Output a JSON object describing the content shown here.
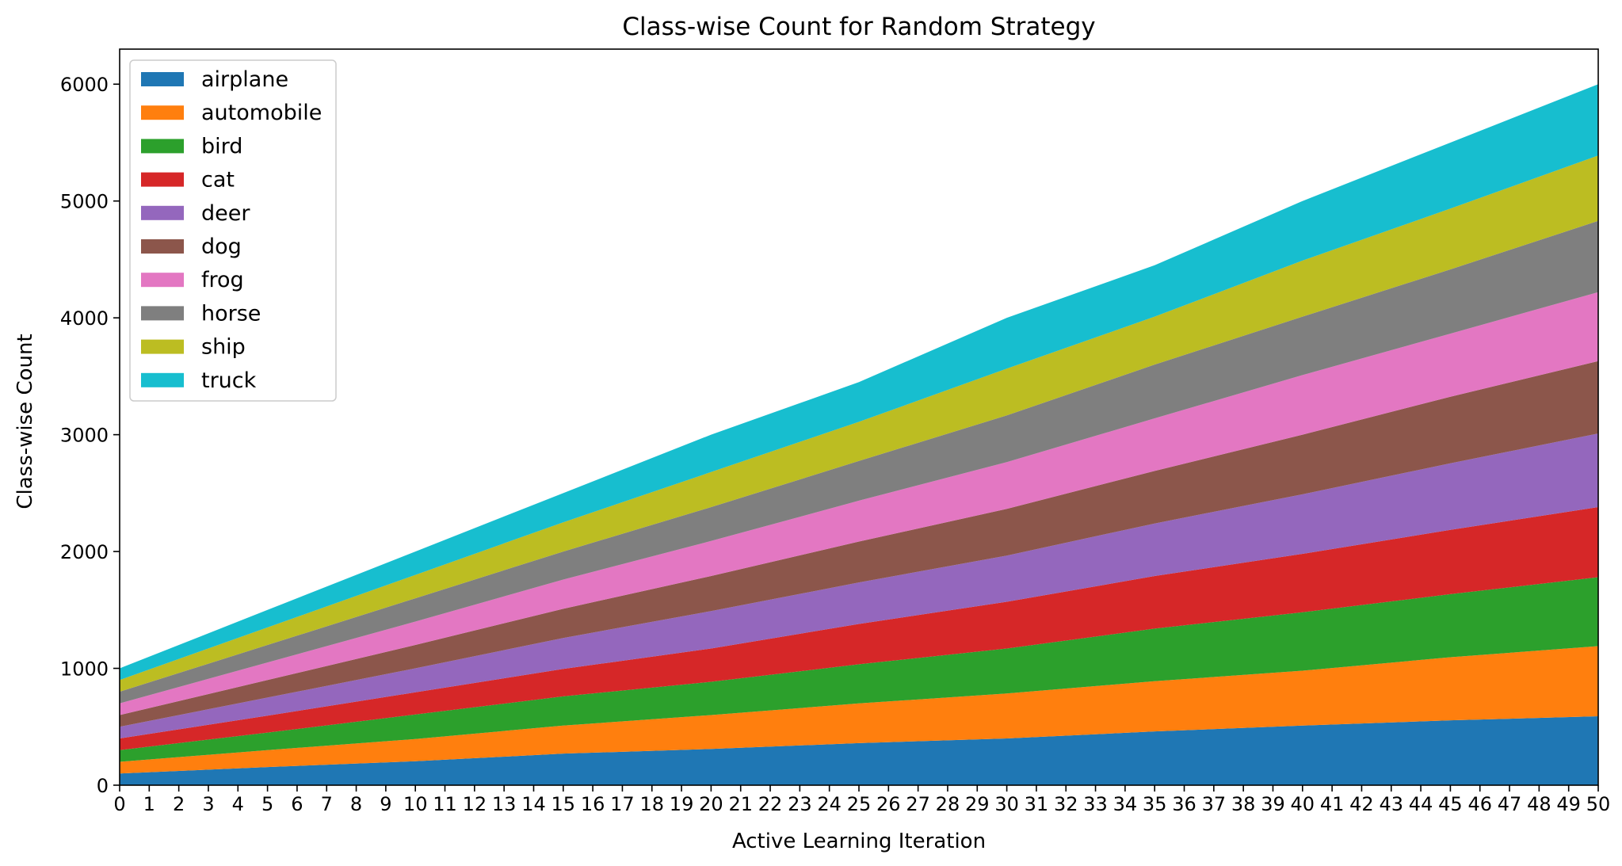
{
  "chart_data": {
    "type": "area",
    "stacked": true,
    "title": "Class-wise Count for Random Strategy",
    "xlabel": "Active Learning Iteration",
    "ylabel": "Class-wise Count",
    "xlim": [
      0,
      50
    ],
    "ylim": [
      0,
      6300
    ],
    "x_ticks": [
      0,
      1,
      2,
      3,
      4,
      5,
      6,
      7,
      8,
      9,
      10,
      11,
      12,
      13,
      14,
      15,
      16,
      17,
      18,
      19,
      20,
      21,
      22,
      23,
      24,
      25,
      26,
      27,
      28,
      29,
      30,
      31,
      32,
      33,
      34,
      35,
      36,
      37,
      38,
      39,
      40,
      41,
      42,
      43,
      44,
      45,
      46,
      47,
      48,
      49,
      50
    ],
    "y_ticks": [
      0,
      1000,
      2000,
      3000,
      4000,
      5000,
      6000
    ],
    "grid": false,
    "legend_position": "top-left",
    "x": [
      0,
      5,
      10,
      15,
      20,
      25,
      30,
      35,
      40,
      45,
      50
    ],
    "series": [
      {
        "name": "airplane",
        "color": "#1f77b4",
        "values": [
          100,
          155,
          205,
          270,
          310,
          360,
          400,
          460,
          510,
          555,
          590
        ]
      },
      {
        "name": "automobile",
        "color": "#ff7f0e",
        "values": [
          100,
          145,
          190,
          240,
          290,
          340,
          385,
          430,
          470,
          540,
          600
        ]
      },
      {
        "name": "bird",
        "color": "#2ca02c",
        "values": [
          100,
          150,
          210,
          250,
          285,
          335,
          385,
          450,
          500,
          540,
          590
        ]
      },
      {
        "name": "cat",
        "color": "#d62728",
        "values": [
          100,
          145,
          190,
          235,
          285,
          345,
          400,
          450,
          500,
          550,
          600
        ]
      },
      {
        "name": "deer",
        "color": "#9467bd",
        "values": [
          100,
          155,
          205,
          265,
          320,
          355,
          395,
          450,
          510,
          570,
          630
        ]
      },
      {
        "name": "dog",
        "color": "#8c564b",
        "values": [
          100,
          150,
          200,
          250,
          300,
          350,
          400,
          450,
          510,
          570,
          620
        ]
      },
      {
        "name": "frog",
        "color": "#e377c2",
        "values": [
          100,
          150,
          200,
          250,
          300,
          350,
          400,
          450,
          510,
          540,
          590
        ]
      },
      {
        "name": "horse",
        "color": "#7f7f7f",
        "values": [
          100,
          150,
          200,
          240,
          290,
          340,
          400,
          460,
          500,
          550,
          610
        ]
      },
      {
        "name": "ship",
        "color": "#bcbd22",
        "values": [
          100,
          150,
          200,
          250,
          300,
          335,
          400,
          410,
          480,
          520,
          560
        ]
      },
      {
        "name": "truck",
        "color": "#17becf",
        "values": [
          100,
          150,
          200,
          250,
          320,
          340,
          435,
          440,
          510,
          565,
          610
        ]
      }
    ]
  }
}
